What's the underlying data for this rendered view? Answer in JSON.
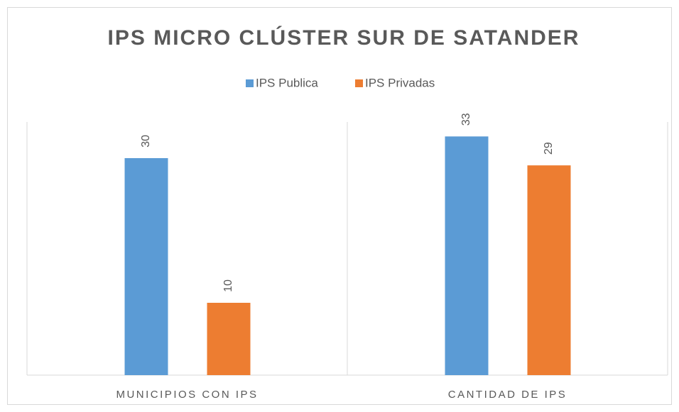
{
  "chart_data": {
    "type": "bar",
    "title": "IPS MICRO CLÚSTER SUR DE SATANDER",
    "categories": [
      "MUNICIPIOS CON IPS",
      "CANTIDAD DE IPS"
    ],
    "series": [
      {
        "name": "IPS Publica",
        "color": "#5b9bd5",
        "values": [
          30,
          33
        ]
      },
      {
        "name": "IPS Privadas",
        "color": "#ed7d31",
        "values": [
          10,
          29
        ]
      }
    ],
    "ylim": [
      0,
      35
    ],
    "legend": "top"
  }
}
